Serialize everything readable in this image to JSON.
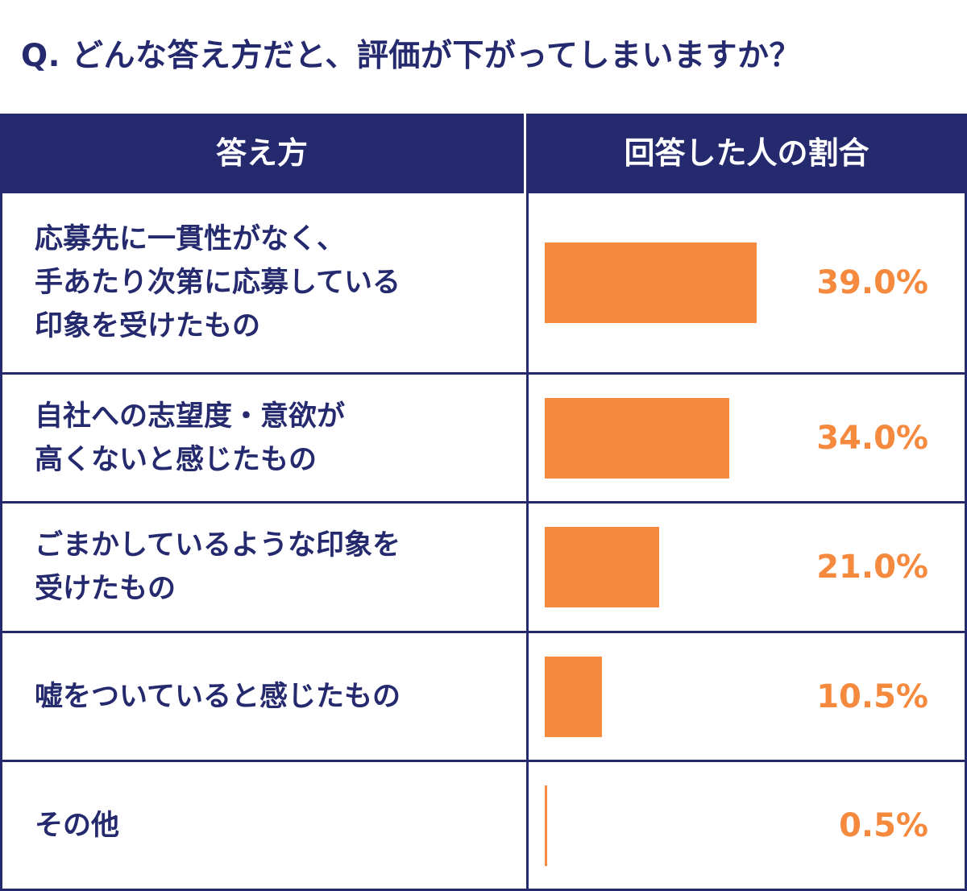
{
  "title": {
    "q": "Q.",
    "text": "どんな答え方だと、評価が下がってしまいますか？"
  },
  "header": {
    "col1": "答え方",
    "col2": "回答した人の割合"
  },
  "colors": {
    "navy": "#252a6e",
    "bar": "#f5893d"
  },
  "chart_data": {
    "type": "bar",
    "orientation": "horizontal",
    "categories": [
      "応募先に一貫性がなく、\n手あたり次第に応募している\n印象を受けたもの",
      "自社への志望度・意欲が\n高くないと感じたもの",
      "ごまかしているような印象を\n受けたもの",
      "嘘をついていると感じたもの",
      "その他"
    ],
    "values": [
      39.0,
      34.0,
      21.0,
      10.5,
      0.5
    ],
    "value_labels": [
      "39.0%",
      "34.0%",
      "21.0%",
      "10.5%",
      "0.5%"
    ],
    "unit": "%"
  }
}
